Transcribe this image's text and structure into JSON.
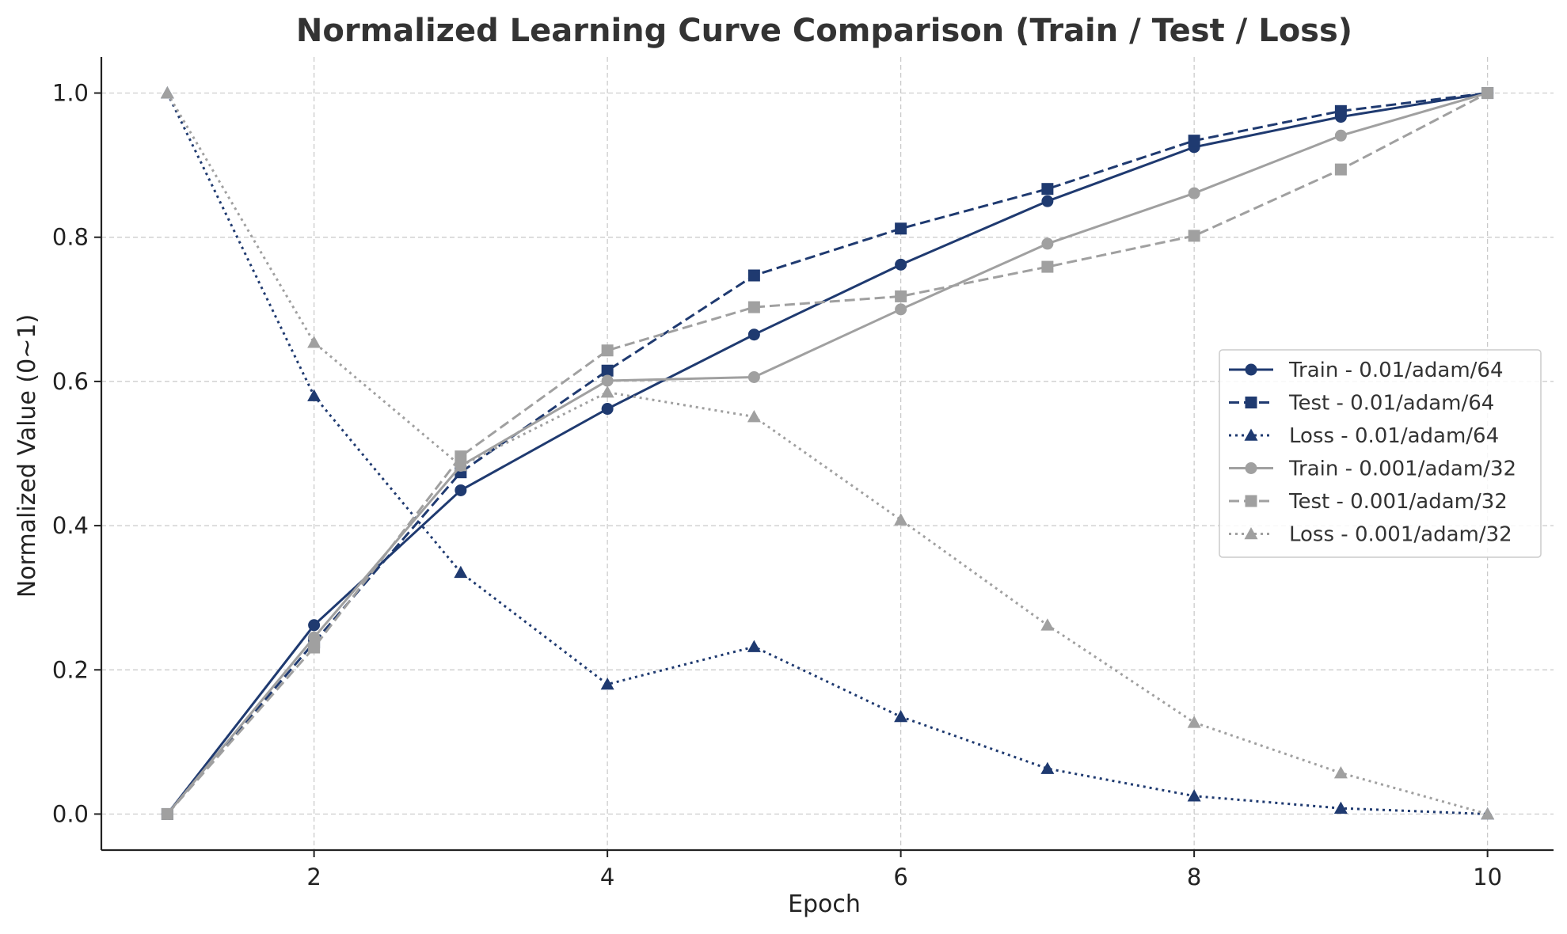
{
  "chart_data": {
    "type": "line",
    "title": "Normalized Learning Curve Comparison (Train / Test / Loss)",
    "xlabel": "Epoch",
    "ylabel": "Normalized Value (0~1)",
    "xlim": [
      0.55,
      10.45
    ],
    "ylim": [
      -0.05,
      1.05
    ],
    "xticks": [
      2,
      4,
      6,
      8,
      10
    ],
    "xtick_labels": [
      "2",
      "4",
      "6",
      "8",
      "10"
    ],
    "yticks": [
      0.0,
      0.2,
      0.4,
      0.6,
      0.8,
      1.0
    ],
    "ytick_labels": [
      "0.0",
      "0.2",
      "0.4",
      "0.6",
      "0.8",
      "1.0"
    ],
    "grid": true,
    "legend_position": "center-right",
    "x": [
      1,
      2,
      3,
      4,
      5,
      6,
      7,
      8,
      9,
      10
    ],
    "series": [
      {
        "name": "Train - 0.01/adam/64",
        "color": "#1f3a70",
        "linestyle": "solid",
        "marker": "circle",
        "values": [
          0.0,
          0.262,
          0.449,
          0.562,
          0.665,
          0.762,
          0.85,
          0.925,
          0.967,
          1.0
        ]
      },
      {
        "name": "Test - 0.01/adam/64",
        "color": "#1f3a70",
        "linestyle": "dashed",
        "marker": "square",
        "values": [
          0.0,
          0.238,
          0.474,
          0.615,
          0.747,
          0.812,
          0.867,
          0.934,
          0.975,
          1.0
        ]
      },
      {
        "name": "Loss - 0.01/adam/64",
        "color": "#1f3a70",
        "linestyle": "dotted",
        "marker": "triangle",
        "values": [
          1.0,
          0.58,
          0.335,
          0.18,
          0.232,
          0.135,
          0.063,
          0.025,
          0.008,
          0.0
        ]
      },
      {
        "name": "Train - 0.001/adam/32",
        "color": "#a0a0a0",
        "linestyle": "solid",
        "marker": "circle",
        "values": [
          0.0,
          0.245,
          0.483,
          0.601,
          0.606,
          0.7,
          0.791,
          0.861,
          0.941,
          1.0
        ]
      },
      {
        "name": "Test - 0.001/adam/32",
        "color": "#a0a0a0",
        "linestyle": "dashed",
        "marker": "square",
        "values": [
          0.0,
          0.231,
          0.496,
          0.643,
          0.703,
          0.718,
          0.759,
          0.802,
          0.894,
          1.0
        ]
      },
      {
        "name": "Loss - 0.001/adam/32",
        "color": "#a0a0a0",
        "linestyle": "dotted",
        "marker": "triangle",
        "values": [
          1.0,
          0.654,
          0.483,
          0.585,
          0.551,
          0.408,
          0.262,
          0.127,
          0.057,
          0.0
        ]
      }
    ]
  }
}
